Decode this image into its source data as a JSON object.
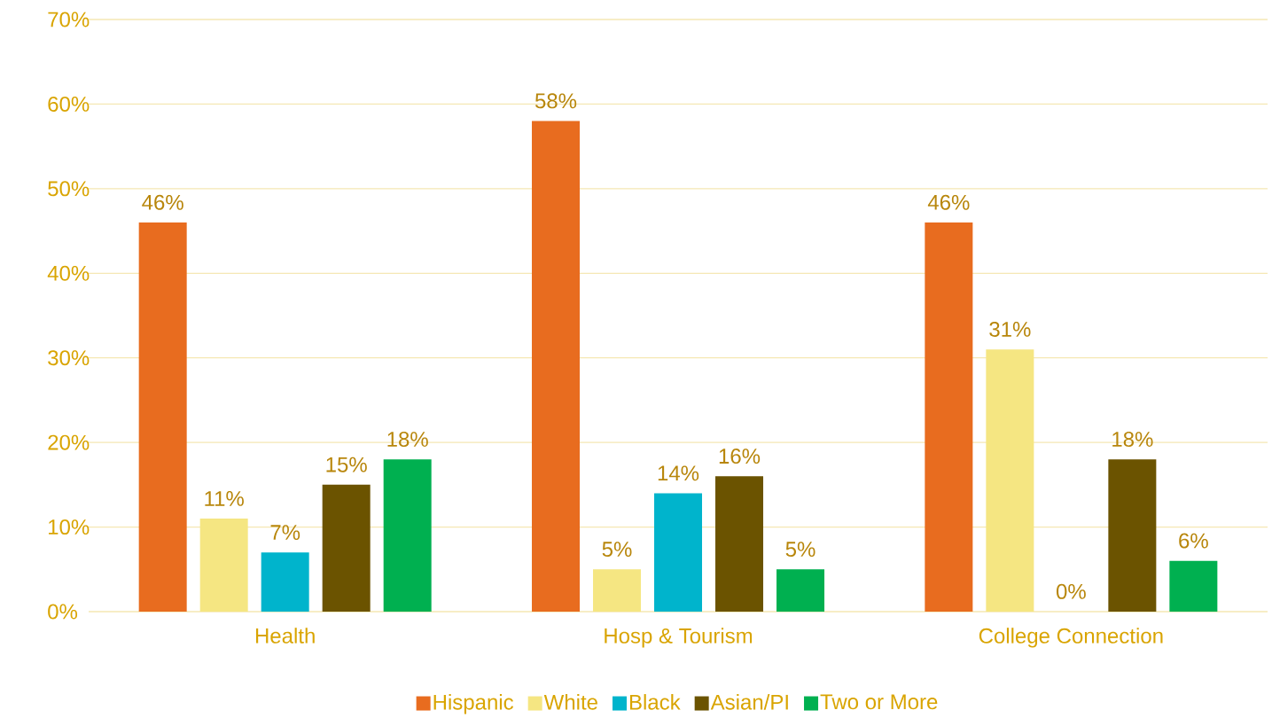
{
  "chart_data": {
    "type": "bar",
    "categories": [
      "Health",
      "Hosp & Tourism",
      "College Connection"
    ],
    "series": [
      {
        "name": "Hispanic",
        "color": "#e86c1f",
        "values": [
          46,
          58,
          46
        ],
        "value_labels": [
          "46%",
          "58%",
          "46%"
        ]
      },
      {
        "name": "White",
        "color": "#f5e682",
        "values": [
          11,
          5,
          31
        ],
        "value_labels": [
          "11%",
          "5%",
          "31%"
        ]
      },
      {
        "name": "Black",
        "color": "#00b4cc",
        "values": [
          7,
          14,
          0
        ],
        "value_labels": [
          "7%",
          "14%",
          "0%"
        ]
      },
      {
        "name": "Asian/PI",
        "color": "#6b5300",
        "values": [
          15,
          16,
          18
        ],
        "value_labels": [
          "15%",
          "16%",
          "18%"
        ]
      },
      {
        "name": "Two or More",
        "color": "#00b050",
        "values": [
          18,
          5,
          6
        ],
        "value_labels": [
          "18%",
          "5%",
          "6%"
        ]
      }
    ],
    "ylim": [
      0,
      70
    ],
    "yticks": [
      {
        "value": 0,
        "label": "0%"
      },
      {
        "value": 10,
        "label": "10%"
      },
      {
        "value": 20,
        "label": "20%"
      },
      {
        "value": 30,
        "label": "30%"
      },
      {
        "value": 40,
        "label": "40%"
      },
      {
        "value": 50,
        "label": "50%"
      },
      {
        "value": 60,
        "label": "60%"
      },
      {
        "value": 70,
        "label": "70%"
      }
    ],
    "grid": "y",
    "legend": "bottom"
  }
}
